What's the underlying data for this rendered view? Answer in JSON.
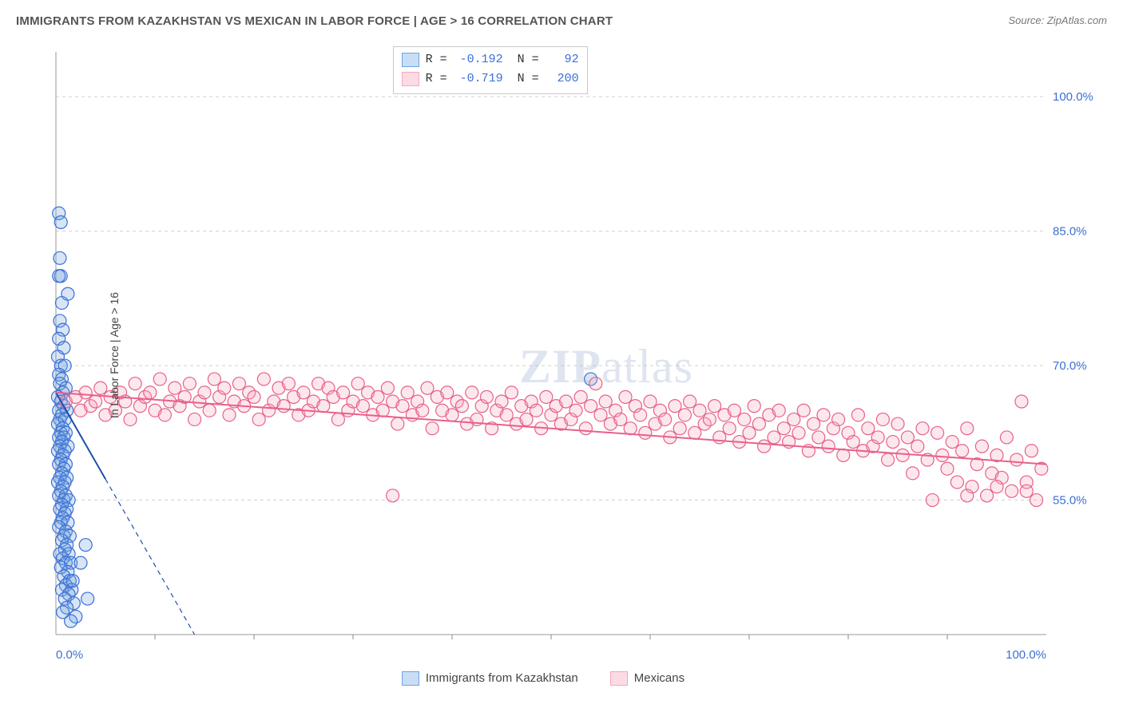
{
  "title": "IMMIGRANTS FROM KAZAKHSTAN VS MEXICAN IN LABOR FORCE | AGE > 16 CORRELATION CHART",
  "source": "Source: ZipAtlas.com",
  "y_axis_label": "In Labor Force | Age > 16",
  "watermark": "ZIPatlas",
  "chart": {
    "type": "scatter-correlation",
    "background_color": "#ffffff",
    "plot_border_color": "#9a9a9a",
    "grid_color": "#d0d0d0",
    "grid_dash": "4,4",
    "xlim": [
      0,
      100
    ],
    "ylim": [
      40,
      105
    ],
    "x_ticks": [
      0,
      100
    ],
    "x_tick_labels": [
      "0.0%",
      "100.0%"
    ],
    "x_tick_color": "#3b6fd6",
    "x_minor_ticks": [
      10,
      20,
      30,
      40,
      50,
      60,
      70,
      80,
      90
    ],
    "y_ticks": [
      55,
      70,
      85,
      100
    ],
    "y_tick_labels": [
      "55.0%",
      "70.0%",
      "85.0%",
      "100.0%"
    ],
    "y_tick_color": "#3b6fd6",
    "marker_radius": 8,
    "marker_stroke_width": 1.2,
    "marker_fill_opacity": 0.28,
    "series": [
      {
        "id": "kazakhstan",
        "label": "Immigrants from Kazakhstan",
        "color": "#6fa3e0",
        "stroke": "#3b6fd6",
        "R": "-0.192",
        "N": "92",
        "trend": {
          "x1": 0,
          "y1": 67,
          "x2": 14,
          "y2": 40,
          "solid_until_x": 5,
          "color": "#1e4fa8",
          "width": 2
        },
        "points": [
          [
            0.3,
            87
          ],
          [
            0.4,
            82
          ],
          [
            0.5,
            80
          ],
          [
            0.6,
            77
          ],
          [
            0.4,
            75
          ],
          [
            0.7,
            74
          ],
          [
            0.3,
            73
          ],
          [
            0.8,
            72
          ],
          [
            0.2,
            71
          ],
          [
            0.5,
            70
          ],
          [
            0.9,
            70
          ],
          [
            0.3,
            69
          ],
          [
            0.6,
            68.5
          ],
          [
            0.4,
            68
          ],
          [
            1.0,
            67.5
          ],
          [
            0.7,
            67
          ],
          [
            0.2,
            66.5
          ],
          [
            0.5,
            66
          ],
          [
            0.8,
            65.5
          ],
          [
            0.3,
            65
          ],
          [
            1.1,
            65
          ],
          [
            0.6,
            64.5
          ],
          [
            0.4,
            64
          ],
          [
            0.9,
            64
          ],
          [
            0.2,
            63.5
          ],
          [
            0.7,
            63
          ],
          [
            0.5,
            62.5
          ],
          [
            1.0,
            62.5
          ],
          [
            0.3,
            62
          ],
          [
            0.8,
            62
          ],
          [
            0.6,
            61.5
          ],
          [
            0.4,
            61
          ],
          [
            1.2,
            61
          ],
          [
            0.2,
            60.5
          ],
          [
            0.9,
            60.5
          ],
          [
            0.7,
            60
          ],
          [
            0.5,
            59.5
          ],
          [
            0.3,
            59
          ],
          [
            1.0,
            59
          ],
          [
            0.8,
            58.5
          ],
          [
            0.6,
            58
          ],
          [
            0.4,
            57.5
          ],
          [
            1.1,
            57.5
          ],
          [
            0.2,
            57
          ],
          [
            0.9,
            57
          ],
          [
            0.7,
            56.5
          ],
          [
            0.5,
            56
          ],
          [
            0.3,
            55.5
          ],
          [
            1.0,
            55.5
          ],
          [
            0.8,
            55
          ],
          [
            1.3,
            55
          ],
          [
            0.6,
            54.5
          ],
          [
            0.4,
            54
          ],
          [
            1.1,
            54
          ],
          [
            0.9,
            53.5
          ],
          [
            0.7,
            53
          ],
          [
            0.5,
            52.5
          ],
          [
            1.2,
            52.5
          ],
          [
            0.3,
            52
          ],
          [
            1.0,
            51.5
          ],
          [
            0.8,
            51
          ],
          [
            1.4,
            51
          ],
          [
            0.6,
            50.5
          ],
          [
            1.1,
            50
          ],
          [
            0.9,
            49.5
          ],
          [
            0.4,
            49
          ],
          [
            1.3,
            49
          ],
          [
            0.7,
            48.5
          ],
          [
            1.0,
            48
          ],
          [
            1.5,
            48
          ],
          [
            0.5,
            47.5
          ],
          [
            1.2,
            47
          ],
          [
            0.8,
            46.5
          ],
          [
            1.4,
            46
          ],
          [
            1.0,
            45.5
          ],
          [
            0.6,
            45
          ],
          [
            1.6,
            45
          ],
          [
            1.3,
            44.5
          ],
          [
            0.9,
            44
          ],
          [
            1.8,
            43.5
          ],
          [
            1.1,
            43
          ],
          [
            0.7,
            42.5
          ],
          [
            2.0,
            42
          ],
          [
            1.5,
            41.5
          ],
          [
            2.5,
            48
          ],
          [
            3.2,
            44
          ],
          [
            0.5,
            86
          ],
          [
            1.2,
            78
          ],
          [
            0.3,
            80
          ],
          [
            54,
            68.5
          ],
          [
            3.0,
            50
          ],
          [
            1.7,
            46
          ]
        ]
      },
      {
        "id": "mexicans",
        "label": "Mexicans",
        "color": "#f4a8bc",
        "stroke": "#e8608a",
        "R": "-0.719",
        "N": "200",
        "trend": {
          "x1": 0,
          "y1": 67,
          "x2": 100,
          "y2": 59,
          "color": "#e8608a",
          "width": 2
        },
        "points": [
          [
            1,
            66
          ],
          [
            2,
            66.5
          ],
          [
            2.5,
            65
          ],
          [
            3,
            67
          ],
          [
            3.5,
            65.5
          ],
          [
            4,
            66
          ],
          [
            4.5,
            67.5
          ],
          [
            5,
            64.5
          ],
          [
            5.5,
            66.5
          ],
          [
            6,
            65
          ],
          [
            6.5,
            67
          ],
          [
            7,
            66
          ],
          [
            7.5,
            64
          ],
          [
            8,
            68
          ],
          [
            8.5,
            65.5
          ],
          [
            9,
            66.5
          ],
          [
            9.5,
            67
          ],
          [
            10,
            65
          ],
          [
            10.5,
            68.5
          ],
          [
            11,
            64.5
          ],
          [
            11.5,
            66
          ],
          [
            12,
            67.5
          ],
          [
            12.5,
            65.5
          ],
          [
            13,
            66.5
          ],
          [
            13.5,
            68
          ],
          [
            14,
            64
          ],
          [
            14.5,
            66
          ],
          [
            15,
            67
          ],
          [
            15.5,
            65
          ],
          [
            16,
            68.5
          ],
          [
            16.5,
            66.5
          ],
          [
            17,
            67.5
          ],
          [
            17.5,
            64.5
          ],
          [
            18,
            66
          ],
          [
            18.5,
            68
          ],
          [
            19,
            65.5
          ],
          [
            19.5,
            67
          ],
          [
            20,
            66.5
          ],
          [
            20.5,
            64
          ],
          [
            21,
            68.5
          ],
          [
            21.5,
            65
          ],
          [
            22,
            66
          ],
          [
            22.5,
            67.5
          ],
          [
            23,
            65.5
          ],
          [
            23.5,
            68
          ],
          [
            24,
            66.5
          ],
          [
            24.5,
            64.5
          ],
          [
            25,
            67
          ],
          [
            25.5,
            65
          ],
          [
            26,
            66
          ],
          [
            26.5,
            68
          ],
          [
            27,
            65.5
          ],
          [
            27.5,
            67.5
          ],
          [
            28,
            66.5
          ],
          [
            28.5,
            64
          ],
          [
            29,
            67
          ],
          [
            29.5,
            65
          ],
          [
            30,
            66
          ],
          [
            30.5,
            68
          ],
          [
            31,
            65.5
          ],
          [
            31.5,
            67
          ],
          [
            32,
            64.5
          ],
          [
            32.5,
            66.5
          ],
          [
            33,
            65
          ],
          [
            33.5,
            67.5
          ],
          [
            34,
            66
          ],
          [
            34.5,
            63.5
          ],
          [
            35,
            65.5
          ],
          [
            35.5,
            67
          ],
          [
            36,
            64.5
          ],
          [
            36.5,
            66
          ],
          [
            37,
            65
          ],
          [
            37.5,
            67.5
          ],
          [
            38,
            63
          ],
          [
            38.5,
            66.5
          ],
          [
            39,
            65
          ],
          [
            39.5,
            67
          ],
          [
            40,
            64.5
          ],
          [
            40.5,
            66
          ],
          [
            41,
            65.5
          ],
          [
            41.5,
            63.5
          ],
          [
            42,
            67
          ],
          [
            42.5,
            64
          ],
          [
            43,
            65.5
          ],
          [
            43.5,
            66.5
          ],
          [
            44,
            63
          ],
          [
            44.5,
            65
          ],
          [
            45,
            66
          ],
          [
            45.5,
            64.5
          ],
          [
            46,
            67
          ],
          [
            46.5,
            63.5
          ],
          [
            47,
            65.5
          ],
          [
            47.5,
            64
          ],
          [
            48,
            66
          ],
          [
            48.5,
            65
          ],
          [
            49,
            63
          ],
          [
            49.5,
            66.5
          ],
          [
            50,
            64.5
          ],
          [
            50.5,
            65.5
          ],
          [
            51,
            63.5
          ],
          [
            51.5,
            66
          ],
          [
            52,
            64
          ],
          [
            52.5,
            65
          ],
          [
            53,
            66.5
          ],
          [
            53.5,
            63
          ],
          [
            54,
            65.5
          ],
          [
            55,
            64.5
          ],
          [
            55.5,
            66
          ],
          [
            56,
            63.5
          ],
          [
            56.5,
            65
          ],
          [
            57,
            64
          ],
          [
            57.5,
            66.5
          ],
          [
            58,
            63
          ],
          [
            58.5,
            65.5
          ],
          [
            59,
            64.5
          ],
          [
            59.5,
            62.5
          ],
          [
            60,
            66
          ],
          [
            60.5,
            63.5
          ],
          [
            61,
            65
          ],
          [
            61.5,
            64
          ],
          [
            62,
            62
          ],
          [
            62.5,
            65.5
          ],
          [
            63,
            63
          ],
          [
            63.5,
            64.5
          ],
          [
            64,
            66
          ],
          [
            64.5,
            62.5
          ],
          [
            65,
            65
          ],
          [
            65.5,
            63.5
          ],
          [
            66,
            64
          ],
          [
            66.5,
            65.5
          ],
          [
            67,
            62
          ],
          [
            67.5,
            64.5
          ],
          [
            68,
            63
          ],
          [
            68.5,
            65
          ],
          [
            69,
            61.5
          ],
          [
            69.5,
            64
          ],
          [
            70,
            62.5
          ],
          [
            70.5,
            65.5
          ],
          [
            71,
            63.5
          ],
          [
            71.5,
            61
          ],
          [
            72,
            64.5
          ],
          [
            72.5,
            62
          ],
          [
            73,
            65
          ],
          [
            73.5,
            63
          ],
          [
            74,
            61.5
          ],
          [
            74.5,
            64
          ],
          [
            75,
            62.5
          ],
          [
            75.5,
            65
          ],
          [
            76,
            60.5
          ],
          [
            76.5,
            63.5
          ],
          [
            77,
            62
          ],
          [
            77.5,
            64.5
          ],
          [
            78,
            61
          ],
          [
            78.5,
            63
          ],
          [
            79,
            64
          ],
          [
            79.5,
            60
          ],
          [
            80,
            62.5
          ],
          [
            80.5,
            61.5
          ],
          [
            81,
            64.5
          ],
          [
            81.5,
            60.5
          ],
          [
            82,
            63
          ],
          [
            82.5,
            61
          ],
          [
            83,
            62
          ],
          [
            83.5,
            64
          ],
          [
            84,
            59.5
          ],
          [
            84.5,
            61.5
          ],
          [
            85,
            63.5
          ],
          [
            85.5,
            60
          ],
          [
            86,
            62
          ],
          [
            86.5,
            58
          ],
          [
            87,
            61
          ],
          [
            87.5,
            63
          ],
          [
            88,
            59.5
          ],
          [
            88.5,
            55
          ],
          [
            89,
            62.5
          ],
          [
            89.5,
            60
          ],
          [
            90,
            58.5
          ],
          [
            90.5,
            61.5
          ],
          [
            91,
            57
          ],
          [
            91.5,
            60.5
          ],
          [
            92,
            63
          ],
          [
            92.5,
            56.5
          ],
          [
            93,
            59
          ],
          [
            93.5,
            61
          ],
          [
            94,
            55.5
          ],
          [
            94.5,
            58
          ],
          [
            95,
            60
          ],
          [
            95.5,
            57.5
          ],
          [
            96,
            62
          ],
          [
            96.5,
            56
          ],
          [
            97,
            59.5
          ],
          [
            97.5,
            66
          ],
          [
            98,
            57
          ],
          [
            98.5,
            60.5
          ],
          [
            99,
            55
          ],
          [
            99.5,
            58.5
          ],
          [
            92,
            55.5
          ],
          [
            95,
            56.5
          ],
          [
            98,
            56
          ],
          [
            54.5,
            68
          ],
          [
            34,
            55.5
          ]
        ]
      }
    ]
  },
  "stats_legend": {
    "rows": [
      {
        "swatch_fill": "#c9ddf5",
        "swatch_border": "#6fa3e0",
        "r_label": "R =",
        "r_val": "-0.192",
        "n_label": "N =",
        "n_val": "92"
      },
      {
        "swatch_fill": "#fcdbe5",
        "swatch_border": "#f4a8bc",
        "r_label": "R =",
        "r_val": "-0.719",
        "n_label": "N =",
        "n_val": "200"
      }
    ]
  },
  "bottom_legend": [
    {
      "swatch_fill": "#c9ddf5",
      "swatch_border": "#6fa3e0",
      "label": "Immigrants from Kazakhstan"
    },
    {
      "swatch_fill": "#fcdbe5",
      "swatch_border": "#f4a8bc",
      "label": "Mexicans"
    }
  ]
}
